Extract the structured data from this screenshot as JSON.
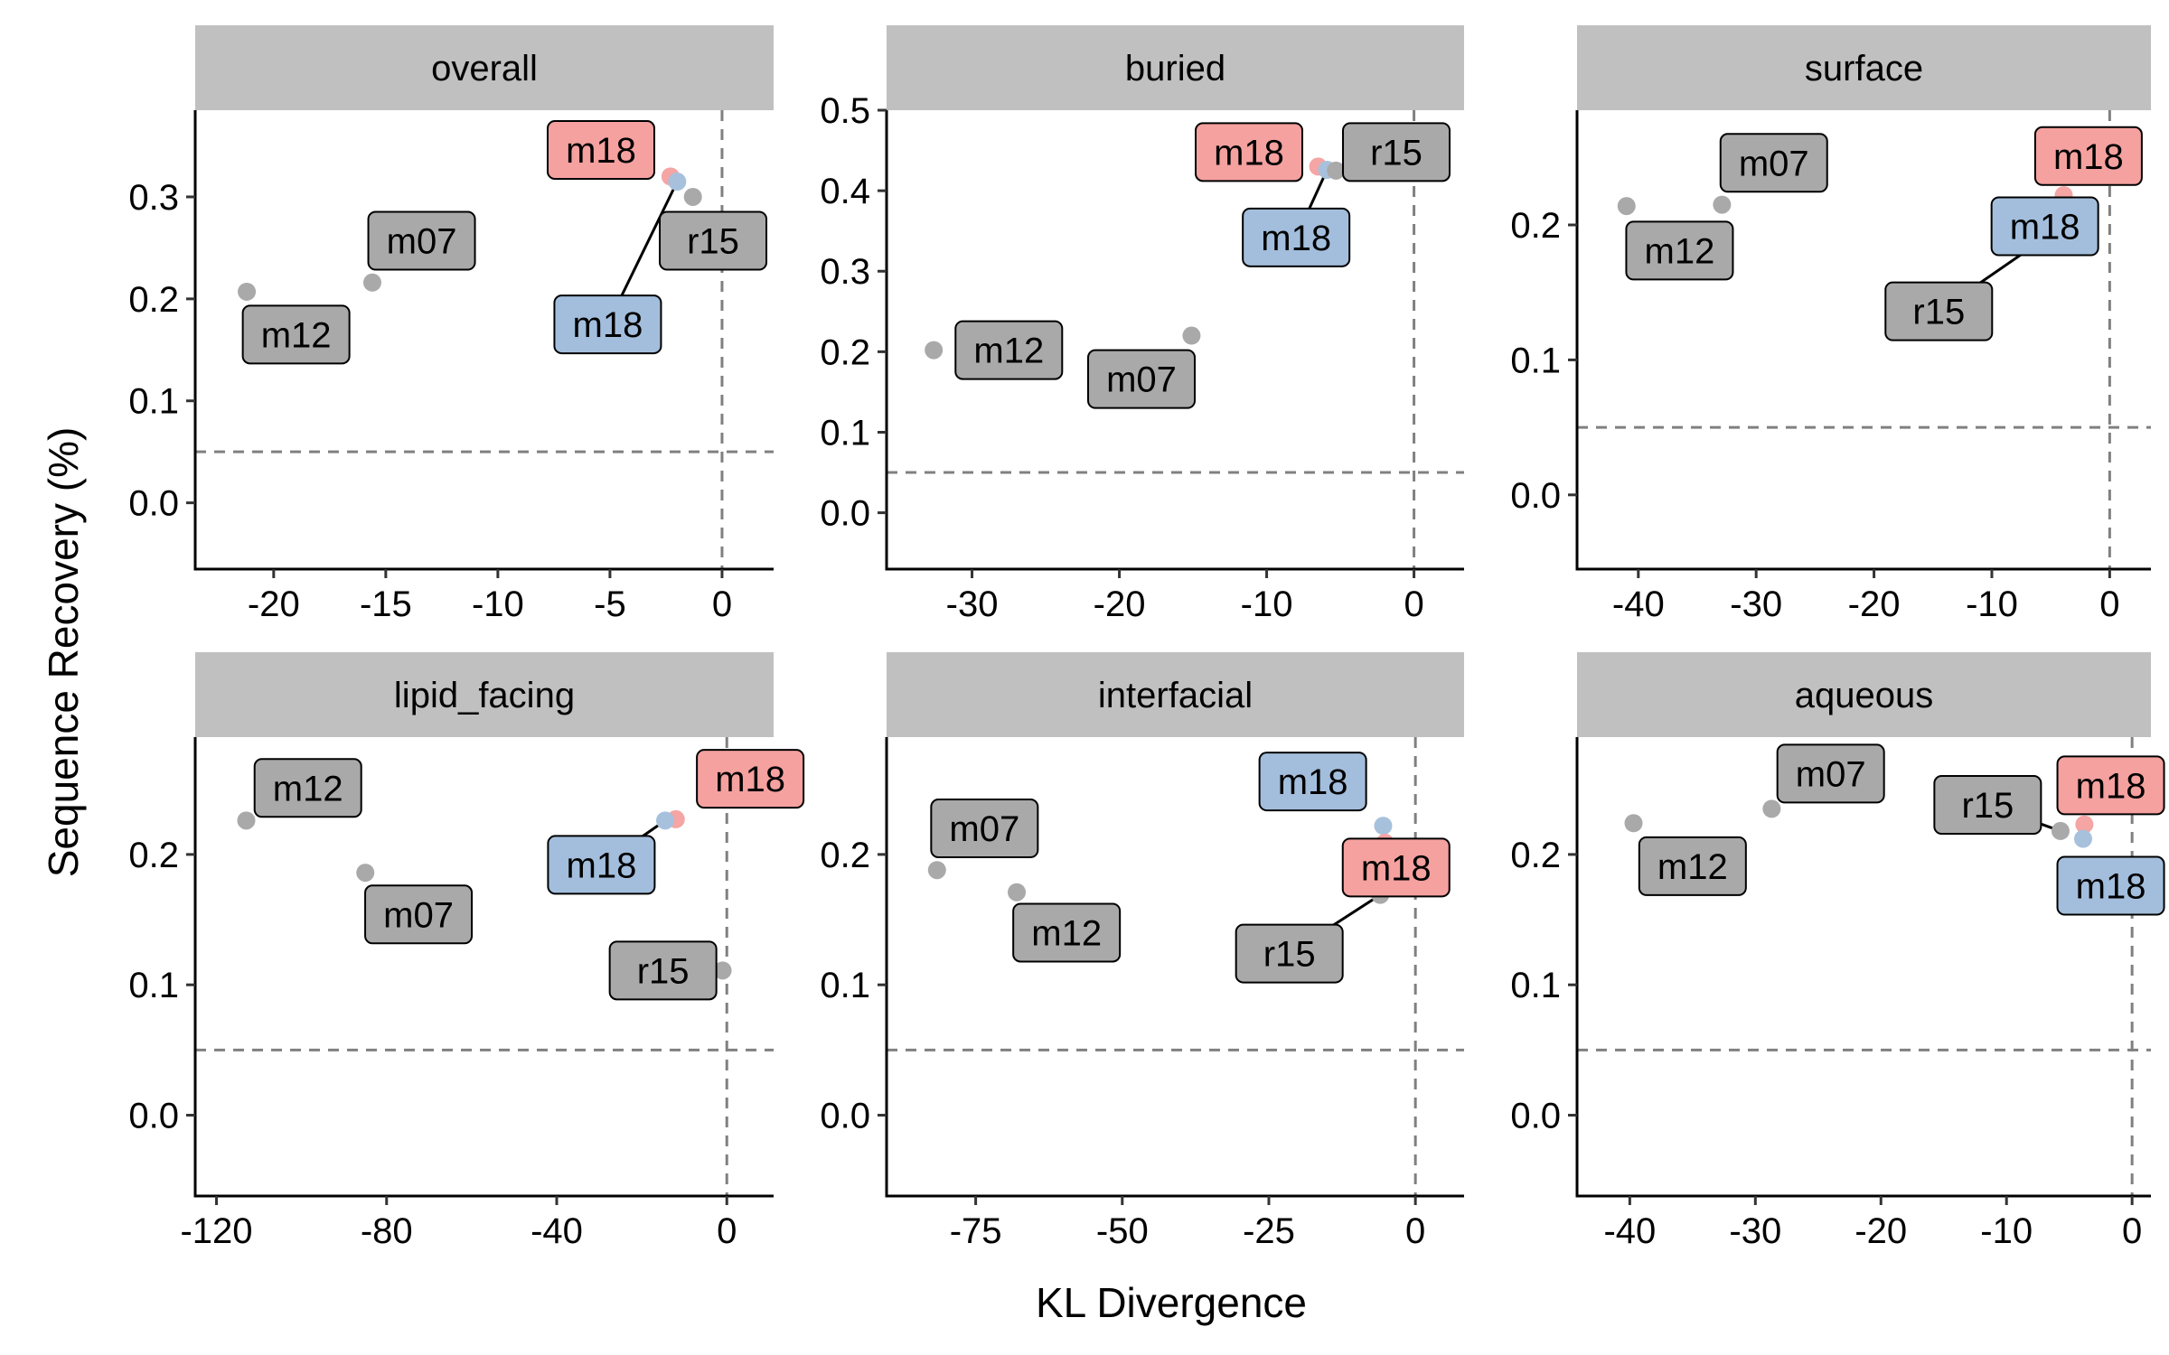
{
  "colors": {
    "strip_bg": "#c0c0c0",
    "ref_line": "#808080",
    "point_grey": "#a9a9a9",
    "point_red": "#f4a5a4",
    "point_blue": "#a7c1dd",
    "label_grey": "#a9a9a9",
    "label_red": "#f4a19f",
    "label_blue": "#a3bedc"
  },
  "chart_data": {
    "type": "scatter",
    "xlabel": "KL Divergence",
    "ylabel": "Sequence Recovery (%)",
    "facets": [
      {
        "title": "overall",
        "xlim": [
          -23.5,
          2.3
        ],
        "xticks": [
          -20,
          -15,
          -10,
          -5,
          0
        ],
        "xtick_labels": [
          "-20",
          "-15",
          "-10",
          "-5",
          "0"
        ],
        "ylim": [
          -0.065,
          0.385
        ],
        "yticks": [
          0.0,
          0.1,
          0.2,
          0.3
        ],
        "ytick_labels": [
          "0.0",
          "0.1",
          "0.2",
          "0.3"
        ],
        "hline": 0.05,
        "vline": 0,
        "points": [
          {
            "label": "m12",
            "x": -21.2,
            "y": 0.207,
            "color": "grey",
            "lx": -19.0,
            "ly": 0.165
          },
          {
            "label": "m07",
            "x": -15.6,
            "y": 0.216,
            "color": "grey",
            "lx": -13.4,
            "ly": 0.257
          },
          {
            "label": "m18",
            "x": -2.3,
            "y": 0.32,
            "color": "red",
            "lx": -5.4,
            "ly": 0.346
          },
          {
            "label": "m18",
            "x": -2.0,
            "y": 0.315,
            "color": "blue",
            "lx": -5.1,
            "ly": 0.175,
            "line": true
          },
          {
            "label": "r15",
            "x": -1.3,
            "y": 0.3,
            "color": "grey",
            "lx": -0.4,
            "ly": 0.257
          }
        ]
      },
      {
        "title": "buried",
        "xlim": [
          -35.8,
          3.4
        ],
        "xticks": [
          -30,
          -20,
          -10,
          0
        ],
        "xtick_labels": [
          "-30",
          "-20",
          "-10",
          "0"
        ],
        "ylim": [
          -0.07,
          0.5
        ],
        "yticks": [
          0.0,
          0.1,
          0.2,
          0.3,
          0.4,
          0.5
        ],
        "ytick_labels": [
          "0.0",
          "0.1",
          "0.2",
          "0.3",
          "0.4",
          "0.5"
        ],
        "hline": 0.05,
        "vline": 0,
        "points": [
          {
            "label": "m12",
            "x": -32.6,
            "y": 0.202,
            "color": "grey",
            "lx": -27.5,
            "ly": 0.202
          },
          {
            "label": "m07",
            "x": -15.1,
            "y": 0.22,
            "color": "grey",
            "lx": -18.5,
            "ly": 0.166
          },
          {
            "label": "m18",
            "x": -6.5,
            "y": 0.43,
            "color": "red",
            "lx": -11.2,
            "ly": 0.448
          },
          {
            "label": "m18",
            "x": -5.9,
            "y": 0.426,
            "color": "blue",
            "lx": -8.0,
            "ly": 0.342,
            "line": true
          },
          {
            "label": "r15",
            "x": -5.3,
            "y": 0.425,
            "color": "grey",
            "lx": -1.2,
            "ly": 0.448
          }
        ]
      },
      {
        "title": "surface",
        "xlim": [
          -45.2,
          3.5
        ],
        "xticks": [
          -40,
          -30,
          -20,
          -10,
          0
        ],
        "xtick_labels": [
          "-40",
          "-30",
          "-20",
          "-10",
          "0"
        ],
        "ylim": [
          -0.055,
          0.285
        ],
        "yticks": [
          0.0,
          0.1,
          0.2
        ],
        "ytick_labels": [
          "0.0",
          "0.1",
          "0.2"
        ],
        "hline": 0.05,
        "vline": 0,
        "points": [
          {
            "label": "m12",
            "x": -41.0,
            "y": 0.214,
            "color": "grey",
            "lx": -36.5,
            "ly": 0.181
          },
          {
            "label": "m07",
            "x": -32.9,
            "y": 0.215,
            "color": "grey",
            "lx": -28.5,
            "ly": 0.246
          },
          {
            "label": "m18",
            "x": -3.9,
            "y": 0.222,
            "color": "red",
            "lx": -1.8,
            "ly": 0.251
          },
          {
            "label": "m18",
            "x": -4.0,
            "y": 0.214,
            "color": "blue",
            "lx": -5.5,
            "ly": 0.199
          },
          {
            "label": "r15",
            "x": -4.2,
            "y": 0.198,
            "color": "grey",
            "lx": -14.5,
            "ly": 0.136,
            "line": true
          }
        ]
      },
      {
        "title": "lipid_facing",
        "xlim": [
          -125.0,
          11.0
        ],
        "xticks": [
          -120,
          -80,
          -40,
          0
        ],
        "xtick_labels": [
          "-120",
          "-80",
          "-40",
          "0"
        ],
        "ylim": [
          -0.062,
          0.29
        ],
        "yticks": [
          0.0,
          0.1,
          0.2
        ],
        "ytick_labels": [
          "0.0",
          "0.1",
          "0.2"
        ],
        "hline": 0.05,
        "vline": 0,
        "points": [
          {
            "label": "m12",
            "x": -113.0,
            "y": 0.226,
            "color": "grey",
            "lx": -98.5,
            "ly": 0.251
          },
          {
            "label": "m07",
            "x": -85.0,
            "y": 0.186,
            "color": "grey",
            "lx": -72.5,
            "ly": 0.154
          },
          {
            "label": "m18",
            "x": -12.0,
            "y": 0.227,
            "color": "red",
            "lx": 5.5,
            "ly": 0.258
          },
          {
            "label": "m18",
            "x": -14.5,
            "y": 0.226,
            "color": "blue",
            "lx": -29.5,
            "ly": 0.192,
            "line": true
          },
          {
            "label": "r15",
            "x": -1.0,
            "y": 0.111,
            "color": "grey",
            "lx": -15.0,
            "ly": 0.111
          }
        ]
      },
      {
        "title": "interfacial",
        "xlim": [
          -90.2,
          8.3
        ],
        "xticks": [
          -75,
          -50,
          -25,
          0
        ],
        "xtick_labels": [
          "-75",
          "-50",
          "-25",
          "0"
        ],
        "ylim": [
          -0.062,
          0.29
        ],
        "yticks": [
          0.0,
          0.1,
          0.2
        ],
        "ytick_labels": [
          "0.0",
          "0.1",
          "0.2"
        ],
        "hline": 0.05,
        "vline": 0,
        "points": [
          {
            "label": "m07",
            "x": -81.6,
            "y": 0.188,
            "color": "grey",
            "lx": -73.5,
            "ly": 0.22
          },
          {
            "label": "m12",
            "x": -68.0,
            "y": 0.171,
            "color": "grey",
            "lx": -59.5,
            "ly": 0.14
          },
          {
            "label": "m18",
            "x": -5.5,
            "y": 0.222,
            "color": "blue",
            "lx": -17.5,
            "ly": 0.256
          },
          {
            "label": "m18",
            "x": -5.2,
            "y": 0.209,
            "color": "red",
            "lx": -3.3,
            "ly": 0.19
          },
          {
            "label": "r15",
            "x": -6.0,
            "y": 0.169,
            "color": "grey",
            "lx": -21.5,
            "ly": 0.124,
            "line": true
          }
        ]
      },
      {
        "title": "aqueous",
        "xlim": [
          -44.2,
          1.5
        ],
        "xticks": [
          -40,
          -30,
          -20,
          -10,
          0
        ],
        "xtick_labels": [
          "-40",
          "-30",
          "-20",
          "-10",
          "0"
        ],
        "ylim": [
          -0.062,
          0.29
        ],
        "yticks": [
          0.0,
          0.1,
          0.2
        ],
        "ytick_labels": [
          "0.0",
          "0.1",
          "0.2"
        ],
        "hline": 0.05,
        "vline": 0,
        "points": [
          {
            "label": "m12",
            "x": -39.7,
            "y": 0.224,
            "color": "grey",
            "lx": -35.0,
            "ly": 0.191
          },
          {
            "label": "m07",
            "x": -28.7,
            "y": 0.235,
            "color": "grey",
            "lx": -24.0,
            "ly": 0.262
          },
          {
            "label": "r15",
            "x": -5.7,
            "y": 0.218,
            "color": "grey",
            "lx": -11.5,
            "ly": 0.238,
            "line": true
          },
          {
            "label": "m18",
            "x": -3.8,
            "y": 0.223,
            "color": "red",
            "lx": -1.7,
            "ly": 0.253
          },
          {
            "label": "m18",
            "x": -3.9,
            "y": 0.212,
            "color": "blue",
            "lx": -1.7,
            "ly": 0.176
          }
        ]
      }
    ]
  }
}
